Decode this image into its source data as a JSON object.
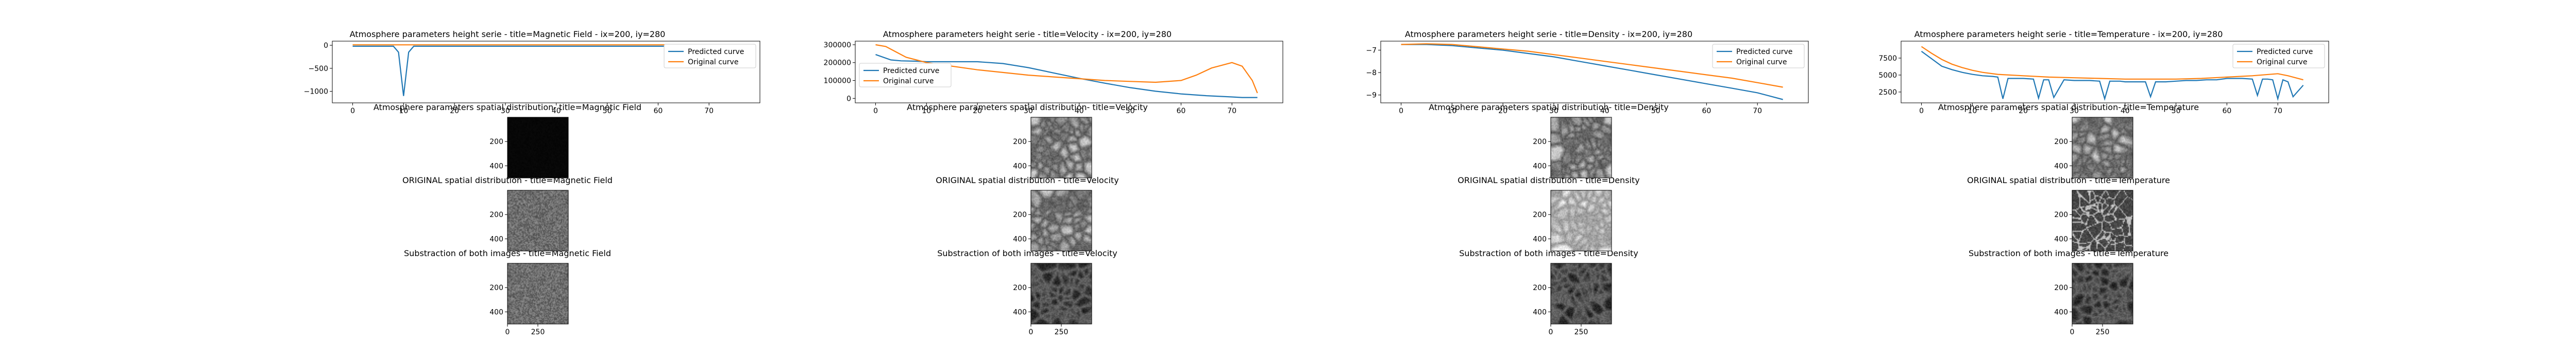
{
  "figure": {
    "title": "",
    "columns": [
      {
        "key": "magnetic_field",
        "line_title": "Atmosphere parameters height serie - title=Magnetic Field - ix=200, iy=280",
        "predicted_title": "Atmosphere parameters spatial distribution- title=Magnetic Field",
        "original_title": "ORIGINAL spatial distribution - title=Magnetic Field",
        "diff_title": "Substraction of both images - title=Magnetic Field"
      },
      {
        "key": "velocity",
        "line_title": "Atmosphere parameters height serie - title=Velocity - ix=200, iy=280",
        "predicted_title": "Atmosphere parameters spatial distribution- title=Velocity",
        "original_title": "ORIGINAL spatial distribution - title=Velocity",
        "diff_title": "Substraction of both images - title=Velocity"
      },
      {
        "key": "density",
        "line_title": "Atmosphere parameters height serie - title=Density - ix=200, iy=280",
        "predicted_title": "Atmosphere parameters spatial distribution- title=Density",
        "original_title": "ORIGINAL spatial distribution - title=Density",
        "diff_title": "Substraction of both images - title=Density"
      },
      {
        "key": "temperature",
        "line_title": "Atmosphere parameters height serie - title=Temperature - ix=200, iy=280",
        "predicted_title": "Atmosphere parameters spatial distribution- title=Temperature",
        "original_title": "ORIGINAL spatial distribution - title=Temperature",
        "diff_title": "Substraction of both images - title=Temperature"
      }
    ],
    "colors": {
      "predicted": "#1f77b4",
      "original": "#ff7f0e",
      "text": "#000000"
    }
  },
  "chart_data": [
    {
      "type": "line",
      "title": "Atmosphere parameters height serie - title=Magnetic Field - ix=200, iy=280",
      "xlabel": "",
      "ylabel": "",
      "xlim": [
        -4,
        80
      ],
      "ylim": [
        -1250,
        90
      ],
      "xticks": [
        0,
        10,
        20,
        30,
        40,
        50,
        60,
        70
      ],
      "yticks": [
        0,
        -500,
        -1000
      ],
      "ytick_labels": [
        "0",
        "−500",
        "−1000"
      ],
      "legend": "top-right",
      "series": [
        {
          "name": "Predicted curve",
          "color": "#1f77b4",
          "x": [
            0,
            1,
            2,
            3,
            4,
            5,
            6,
            7,
            8,
            9,
            10,
            11,
            12,
            13,
            14,
            15,
            16,
            17,
            18,
            19,
            20,
            25,
            30,
            35,
            40,
            45,
            50,
            55,
            60,
            65,
            70,
            75
          ],
          "y": [
            -20,
            -20,
            -20,
            -20,
            -20,
            -20,
            -20,
            -20,
            -20,
            -150,
            -1100,
            -150,
            -20,
            -20,
            -20,
            -20,
            -20,
            -20,
            -20,
            -20,
            -20,
            -20,
            -20,
            -20,
            -20,
            -20,
            -20,
            -20,
            -20,
            -20,
            -20,
            -20
          ]
        },
        {
          "name": "Original curve",
          "color": "#ff7f0e",
          "x": [
            0,
            10,
            20,
            30,
            40,
            50,
            60,
            70,
            75
          ],
          "y": [
            10,
            10,
            10,
            10,
            10,
            10,
            10,
            10,
            10
          ]
        }
      ]
    },
    {
      "type": "line",
      "title": "Atmosphere parameters height serie - title=Velocity - ix=200, iy=280",
      "xlabel": "",
      "ylabel": "",
      "xlim": [
        -4,
        80
      ],
      "ylim": [
        -25000,
        320000
      ],
      "xticks": [
        0,
        10,
        20,
        30,
        40,
        50,
        60,
        70
      ],
      "yticks": [
        0,
        100000,
        200000,
        300000
      ],
      "ytick_labels": [
        "0",
        "100000",
        "200000",
        "300000"
      ],
      "legend": "center-left",
      "series": [
        {
          "name": "Predicted curve",
          "color": "#1f77b4",
          "x": [
            0,
            3,
            5,
            8,
            10,
            15,
            20,
            25,
            30,
            35,
            40,
            45,
            50,
            55,
            60,
            65,
            70,
            72,
            75
          ],
          "y": [
            245000,
            215000,
            210000,
            208000,
            205000,
            205000,
            205000,
            195000,
            172000,
            142000,
            112000,
            85000,
            60000,
            40000,
            25000,
            15000,
            8000,
            5000,
            5000
          ]
        },
        {
          "name": "Original curve",
          "color": "#ff7f0e",
          "x": [
            0,
            2,
            4,
            6,
            8,
            10,
            15,
            20,
            25,
            30,
            35,
            40,
            45,
            50,
            55,
            60,
            63,
            66,
            70,
            72,
            74,
            75
          ],
          "y": [
            300000,
            290000,
            260000,
            230000,
            215000,
            200000,
            180000,
            160000,
            145000,
            130000,
            120000,
            110000,
            100000,
            95000,
            90000,
            100000,
            130000,
            170000,
            200000,
            180000,
            100000,
            30000
          ]
        }
      ]
    },
    {
      "type": "line",
      "title": "Atmosphere parameters height serie - title=Density - ix=200, iy=280",
      "xlabel": "",
      "ylabel": "",
      "xlim": [
        -4,
        80
      ],
      "ylim": [
        -9.35,
        -6.6
      ],
      "xticks": [
        0,
        10,
        20,
        30,
        40,
        50,
        60,
        70
      ],
      "yticks": [
        -7,
        -8,
        -9
      ],
      "ytick_labels": [
        "−7",
        "−8",
        "−9"
      ],
      "legend": "top-right",
      "series": [
        {
          "name": "Predicted curve",
          "color": "#1f77b4",
          "x": [
            0,
            5,
            10,
            15,
            20,
            25,
            30,
            35,
            40,
            45,
            50,
            55,
            60,
            65,
            70,
            75
          ],
          "y": [
            -6.75,
            -6.75,
            -6.8,
            -6.9,
            -7.0,
            -7.15,
            -7.3,
            -7.5,
            -7.7,
            -7.9,
            -8.1,
            -8.3,
            -8.5,
            -8.7,
            -8.9,
            -9.2
          ]
        },
        {
          "name": "Original curve",
          "color": "#ff7f0e",
          "x": [
            0,
            5,
            10,
            15,
            20,
            25,
            30,
            35,
            40,
            45,
            50,
            55,
            60,
            65,
            70,
            75
          ],
          "y": [
            -6.75,
            -6.72,
            -6.75,
            -6.85,
            -6.95,
            -7.05,
            -7.2,
            -7.35,
            -7.5,
            -7.65,
            -7.8,
            -7.95,
            -8.1,
            -8.25,
            -8.45,
            -8.65
          ]
        }
      ]
    },
    {
      "type": "line",
      "title": "Atmosphere parameters height serie - title=Temperature - ix=200, iy=280",
      "xlabel": "",
      "ylabel": "",
      "xlim": [
        -4,
        80
      ],
      "ylim": [
        900,
        10000
      ],
      "xticks": [
        0,
        10,
        20,
        30,
        40,
        50,
        60,
        70
      ],
      "yticks": [
        2500,
        5000,
        7500
      ],
      "ytick_labels": [
        "2500",
        "5000",
        "7500"
      ],
      "legend": "top-right",
      "series": [
        {
          "name": "Predicted curve",
          "color": "#1f77b4",
          "x": [
            0,
            2,
            4,
            6,
            8,
            10,
            12,
            14,
            15,
            16,
            17,
            18,
            20,
            22,
            23,
            24,
            25,
            26,
            28,
            30,
            33,
            35,
            36,
            37,
            39,
            40,
            42,
            44,
            45,
            46,
            47,
            48,
            50,
            52,
            54,
            56,
            58,
            60,
            63,
            65,
            66,
            67,
            68,
            69,
            70,
            71,
            72,
            73,
            75
          ],
          "y": [
            8500,
            7400,
            6300,
            5800,
            5400,
            5100,
            4900,
            4800,
            4700,
            1500,
            4500,
            4500,
            4500,
            4400,
            1600,
            4300,
            4300,
            1700,
            4300,
            4200,
            4200,
            4100,
            1500,
            4100,
            4100,
            4000,
            4000,
            4000,
            1800,
            4000,
            4000,
            4000,
            4100,
            4200,
            4200,
            4300,
            4300,
            4500,
            4500,
            4400,
            2000,
            4400,
            4400,
            4300,
            1500,
            4300,
            4000,
            1800,
            3500
          ]
        },
        {
          "name": "Original curve",
          "color": "#ff7f0e",
          "x": [
            0,
            2,
            4,
            6,
            8,
            10,
            12,
            15,
            20,
            25,
            30,
            35,
            40,
            45,
            50,
            55,
            60,
            65,
            70,
            72,
            75
          ],
          "y": [
            9200,
            8200,
            7300,
            6600,
            6100,
            5700,
            5400,
            5100,
            4900,
            4700,
            4600,
            4500,
            4400,
            4400,
            4400,
            4500,
            4700,
            4900,
            5200,
            4900,
            4300
          ]
        }
      ]
    },
    {
      "type": "heatmap",
      "description_key": "spatial distribution panels",
      "xticks": [
        0,
        250
      ],
      "yticks": [
        200,
        400
      ],
      "extent": [
        0,
        500,
        500,
        0
      ],
      "cmap": "gray",
      "panels": [
        {
          "column": "Magnetic Field",
          "row": "predicted",
          "style": "black",
          "seed": 1
        },
        {
          "column": "Magnetic Field",
          "row": "original",
          "style": "fine",
          "seed": 2
        },
        {
          "column": "Magnetic Field",
          "row": "difference",
          "style": "fine",
          "seed": 3
        },
        {
          "column": "Velocity",
          "row": "predicted",
          "style": "granular",
          "seed": 4
        },
        {
          "column": "Velocity",
          "row": "original",
          "style": "granular",
          "seed": 5
        },
        {
          "column": "Velocity",
          "row": "difference",
          "style": "dark",
          "seed": 6
        },
        {
          "column": "Density",
          "row": "predicted",
          "style": "granular",
          "seed": 7
        },
        {
          "column": "Density",
          "row": "original",
          "style": "light",
          "seed": 8
        },
        {
          "column": "Density",
          "row": "difference",
          "style": "dark",
          "seed": 9
        },
        {
          "column": "Temperature",
          "row": "predicted",
          "style": "granular",
          "seed": 10
        },
        {
          "column": "Temperature",
          "row": "original",
          "style": "darkspots",
          "seed": 11
        },
        {
          "column": "Temperature",
          "row": "difference",
          "style": "dark",
          "seed": 12
        }
      ]
    }
  ]
}
